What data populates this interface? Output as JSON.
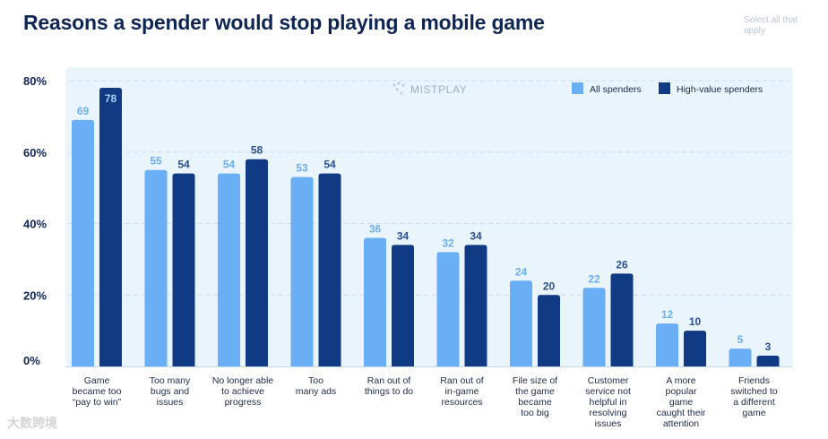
{
  "title": "Reasons a spender would stop playing a mobile game",
  "note": "Select all that apply",
  "watermark": "MISTPLAY",
  "source_mark": "大数跨境",
  "colors": {
    "all_spenders": "#6aaff5",
    "high_value": "#103a84",
    "plot_bg": "#eaf4fc",
    "label_light": "#6aaff5",
    "label_dark": "#2a4f95",
    "title": "#0f2556"
  },
  "chart_data": {
    "type": "bar",
    "title": "Reasons a spender would stop playing a mobile game",
    "xlabel": "",
    "ylabel": "",
    "ylim": [
      0,
      80
    ],
    "yticks": [
      0,
      20,
      40,
      60,
      80
    ],
    "ytick_labels": [
      "0%",
      "20%",
      "40%",
      "60%",
      "80%"
    ],
    "legend_position": "top-right",
    "categories": [
      [
        "Game",
        "became too",
        "“pay to win”"
      ],
      [
        "Too many",
        "bugs and",
        "issues"
      ],
      [
        "No longer able",
        "to achieve",
        "progress"
      ],
      [
        "Too",
        "many ads"
      ],
      [
        "Ran out of",
        "things to do"
      ],
      [
        "Ran out of",
        "in-game",
        "resources"
      ],
      [
        "File size of",
        "the game",
        "became",
        "too big"
      ],
      [
        "Customer",
        "service not",
        "helpful in",
        "resolving",
        "issues"
      ],
      [
        "A more",
        "popular",
        "game",
        "caught their",
        "attention"
      ],
      [
        "Friends",
        "switched to",
        "a different",
        "game"
      ]
    ],
    "series": [
      {
        "name": "All spenders",
        "values": [
          69,
          55,
          54,
          53,
          36,
          32,
          24,
          22,
          12,
          5
        ]
      },
      {
        "name": "High-value spenders",
        "values": [
          78,
          54,
          58,
          54,
          34,
          34,
          20,
          26,
          10,
          3
        ]
      }
    ]
  }
}
